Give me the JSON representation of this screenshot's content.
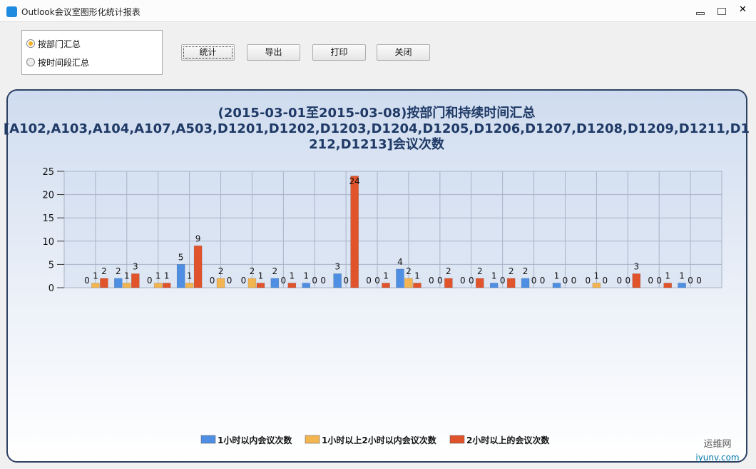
{
  "window": {
    "title": "Outlook会议室图形化统计报表"
  },
  "options": [
    "按部门汇总",
    "按时间段汇总"
  ],
  "buttons": [
    "统计",
    "导出",
    "打印",
    "关闭"
  ],
  "watermark": [
    "运维网",
    "iyunv.com"
  ],
  "chart_data": {
    "type": "bar",
    "title": [
      "(2015-03-01至2015-03-08)按部门和持续时间汇总",
      "[A102,A103,A104,A107,A503,D1201,D1202,D1203,D1204,D1205,D1206,D1207,D1208,D1209,D1211,D1",
      "212,D1213]会议次数"
    ],
    "categories": [
      null,
      null,
      null,
      null,
      null,
      null,
      null,
      null,
      null,
      null,
      null,
      null,
      null,
      null,
      null,
      null,
      null,
      null,
      null,
      null
    ],
    "series": [
      {
        "name": "1小时以内会议次数",
        "color": "#4f8fe3",
        "values": [
          0,
          2,
          0,
          5,
          0,
          0,
          2,
          1,
          3,
          0,
          4,
          0,
          0,
          1,
          2,
          1,
          0,
          0,
          0,
          1
        ]
      },
      {
        "name": "1小时以上2小时以内会议次数",
        "color": "#f2b550",
        "values": [
          1,
          1,
          1,
          1,
          2,
          2,
          0,
          0,
          0,
          0,
          2,
          0,
          0,
          0,
          0,
          0,
          1,
          0,
          0,
          0
        ]
      },
      {
        "name": "2小时以上的会议次数",
        "color": "#e0532b",
        "values": [
          2,
          3,
          1,
          9,
          0,
          1,
          1,
          0,
          24,
          1,
          1,
          2,
          2,
          2,
          0,
          0,
          0,
          3,
          1,
          0
        ]
      }
    ],
    "ylim": [
      0,
      25
    ],
    "yticks": [
      0,
      5,
      10,
      15,
      20,
      25
    ],
    "grid": true
  }
}
